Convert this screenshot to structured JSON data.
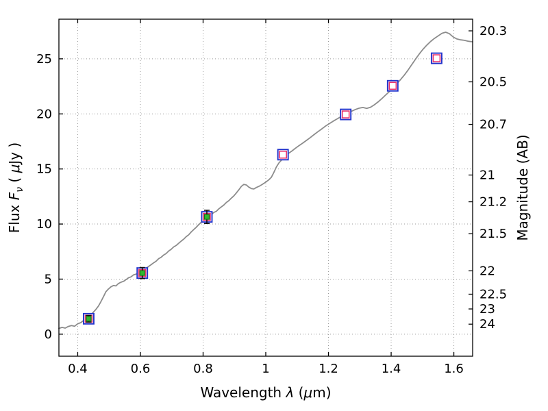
{
  "page": {
    "background": "#ffffff"
  },
  "chart_data": {
    "type": "line",
    "title": "",
    "xlabel": "Wavelength λ (μm)",
    "ylabel": "Flux Fν ( μJy )",
    "ylabel_right": "Magnitude (AB)",
    "xlabel_parts": [
      {
        "t": "Wavelength  ",
        "style": "normal"
      },
      {
        "t": "λ",
        "style": "italic"
      },
      {
        "t": " (",
        "style": "normal"
      },
      {
        "t": "μ",
        "style": "italic"
      },
      {
        "t": "m)",
        "style": "normal"
      }
    ],
    "ylabel_parts": [
      {
        "t": "Flux  ",
        "style": "normal"
      },
      {
        "t": "F",
        "style": "italic"
      },
      {
        "t": "ν",
        "style": "sub"
      },
      {
        "t": "  ( ",
        "style": "normal"
      },
      {
        "t": "μ",
        "style": "italic"
      },
      {
        "t": "Jy )",
        "style": "normal"
      }
    ],
    "xlim": [
      0.34,
      1.66
    ],
    "ylim": [
      -2.0,
      28.6
    ],
    "x_ticks": [
      {
        "v": 0.4,
        "label": "0.4"
      },
      {
        "v": 0.6,
        "label": "0.6"
      },
      {
        "v": 0.8,
        "label": "0.8"
      },
      {
        "v": 1.0,
        "label": "1"
      },
      {
        "v": 1.2,
        "label": "1.2"
      },
      {
        "v": 1.4,
        "label": "1.4"
      },
      {
        "v": 1.6,
        "label": "1.6"
      }
    ],
    "y_ticks_left": [
      {
        "v": 0,
        "label": "0"
      },
      {
        "v": 5,
        "label": "5"
      },
      {
        "v": 10,
        "label": "10"
      },
      {
        "v": 15,
        "label": "15"
      },
      {
        "v": 20,
        "label": "20"
      },
      {
        "v": 25,
        "label": "25"
      }
    ],
    "y_ticks_right": [
      {
        "v": 27.54,
        "label": "20.3"
      },
      {
        "v": 22.91,
        "label": "20.5"
      },
      {
        "v": 19.05,
        "label": "20.7"
      },
      {
        "v": 14.45,
        "label": "21"
      },
      {
        "v": 12.02,
        "label": "21.2"
      },
      {
        "v": 9.12,
        "label": "21.5"
      },
      {
        "v": 5.75,
        "label": "22"
      },
      {
        "v": 3.63,
        "label": "22.5"
      },
      {
        "v": 2.29,
        "label": "23"
      },
      {
        "v": 0.91,
        "label": "24"
      }
    ],
    "grid": {
      "show": true,
      "linestyle": "dotted",
      "color": "#9a9a9a"
    },
    "colors": {
      "spectrum": "#8c8c8c",
      "outer_square": "#2233cc",
      "model_square": "#e8336d",
      "observed_fill": "#2eb82e",
      "observed_edge": "#117711",
      "errorbar": "#111111",
      "axes": "#000000"
    },
    "series": [
      {
        "name": "model-spectrum",
        "type": "line",
        "points": [
          [
            0.34,
            0.52
          ],
          [
            0.35,
            0.62
          ],
          [
            0.36,
            0.55
          ],
          [
            0.37,
            0.7
          ],
          [
            0.38,
            0.78
          ],
          [
            0.39,
            0.72
          ],
          [
            0.4,
            0.95
          ],
          [
            0.41,
            1.05
          ],
          [
            0.42,
            1.28
          ],
          [
            0.43,
            1.45
          ],
          [
            0.44,
            1.7
          ],
          [
            0.45,
            2.0
          ],
          [
            0.458,
            2.25
          ],
          [
            0.466,
            2.55
          ],
          [
            0.474,
            2.95
          ],
          [
            0.482,
            3.4
          ],
          [
            0.49,
            3.85
          ],
          [
            0.498,
            4.1
          ],
          [
            0.506,
            4.3
          ],
          [
            0.514,
            4.42
          ],
          [
            0.522,
            4.38
          ],
          [
            0.53,
            4.6
          ],
          [
            0.538,
            4.72
          ],
          [
            0.546,
            4.8
          ],
          [
            0.554,
            4.95
          ],
          [
            0.562,
            5.12
          ],
          [
            0.57,
            5.2
          ],
          [
            0.578,
            5.38
          ],
          [
            0.586,
            5.45
          ],
          [
            0.594,
            5.6
          ],
          [
            0.602,
            5.68
          ],
          [
            0.61,
            5.88
          ],
          [
            0.618,
            5.98
          ],
          [
            0.626,
            6.15
          ],
          [
            0.634,
            6.3
          ],
          [
            0.642,
            6.48
          ],
          [
            0.65,
            6.62
          ],
          [
            0.658,
            6.85
          ],
          [
            0.666,
            6.98
          ],
          [
            0.674,
            7.18
          ],
          [
            0.682,
            7.32
          ],
          [
            0.69,
            7.55
          ],
          [
            0.698,
            7.7
          ],
          [
            0.706,
            7.92
          ],
          [
            0.714,
            8.05
          ],
          [
            0.722,
            8.25
          ],
          [
            0.73,
            8.45
          ],
          [
            0.738,
            8.62
          ],
          [
            0.746,
            8.85
          ],
          [
            0.754,
            9.02
          ],
          [
            0.762,
            9.28
          ],
          [
            0.77,
            9.5
          ],
          [
            0.778,
            9.7
          ],
          [
            0.786,
            9.95
          ],
          [
            0.794,
            10.15
          ],
          [
            0.802,
            10.32
          ],
          [
            0.81,
            10.52
          ],
          [
            0.818,
            10.65
          ],
          [
            0.826,
            10.85
          ],
          [
            0.834,
            11.05
          ],
          [
            0.842,
            11.15
          ],
          [
            0.85,
            11.38
          ],
          [
            0.858,
            11.55
          ],
          [
            0.866,
            11.72
          ],
          [
            0.874,
            11.95
          ],
          [
            0.882,
            12.12
          ],
          [
            0.89,
            12.35
          ],
          [
            0.898,
            12.55
          ],
          [
            0.906,
            12.82
          ],
          [
            0.914,
            13.1
          ],
          [
            0.922,
            13.42
          ],
          [
            0.93,
            13.6
          ],
          [
            0.938,
            13.55
          ],
          [
            0.946,
            13.35
          ],
          [
            0.954,
            13.22
          ],
          [
            0.962,
            13.18
          ],
          [
            0.97,
            13.32
          ],
          [
            0.978,
            13.42
          ],
          [
            0.986,
            13.55
          ],
          [
            0.994,
            13.7
          ],
          [
            1.002,
            13.85
          ],
          [
            1.01,
            14.02
          ],
          [
            1.018,
            14.25
          ],
          [
            1.026,
            14.7
          ],
          [
            1.034,
            15.2
          ],
          [
            1.042,
            15.55
          ],
          [
            1.05,
            15.8
          ],
          [
            1.058,
            16.05
          ],
          [
            1.066,
            16.28
          ],
          [
            1.074,
            16.45
          ],
          [
            1.082,
            16.6
          ],
          [
            1.09,
            16.78
          ],
          [
            1.098,
            16.95
          ],
          [
            1.106,
            17.12
          ],
          [
            1.118,
            17.35
          ],
          [
            1.13,
            17.6
          ],
          [
            1.142,
            17.85
          ],
          [
            1.154,
            18.12
          ],
          [
            1.166,
            18.38
          ],
          [
            1.178,
            18.62
          ],
          [
            1.19,
            18.88
          ],
          [
            1.202,
            19.1
          ],
          [
            1.214,
            19.32
          ],
          [
            1.226,
            19.52
          ],
          [
            1.238,
            19.72
          ],
          [
            1.25,
            19.9
          ],
          [
            1.262,
            20.08
          ],
          [
            1.274,
            20.25
          ],
          [
            1.286,
            20.4
          ],
          [
            1.298,
            20.52
          ],
          [
            1.31,
            20.58
          ],
          [
            1.322,
            20.5
          ],
          [
            1.334,
            20.6
          ],
          [
            1.346,
            20.82
          ],
          [
            1.358,
            21.08
          ],
          [
            1.37,
            21.38
          ],
          [
            1.382,
            21.7
          ],
          [
            1.394,
            22.02
          ],
          [
            1.406,
            22.38
          ],
          [
            1.418,
            22.75
          ],
          [
            1.43,
            23.12
          ],
          [
            1.442,
            23.52
          ],
          [
            1.454,
            23.98
          ],
          [
            1.466,
            24.48
          ],
          [
            1.478,
            24.98
          ],
          [
            1.49,
            25.45
          ],
          [
            1.502,
            25.88
          ],
          [
            1.514,
            26.25
          ],
          [
            1.526,
            26.58
          ],
          [
            1.538,
            26.85
          ],
          [
            1.55,
            27.08
          ],
          [
            1.562,
            27.32
          ],
          [
            1.574,
            27.42
          ],
          [
            1.586,
            27.28
          ],
          [
            1.598,
            26.98
          ],
          [
            1.61,
            26.8
          ],
          [
            1.622,
            26.72
          ],
          [
            1.634,
            26.68
          ],
          [
            1.646,
            26.6
          ],
          [
            1.658,
            26.55
          ],
          [
            1.66,
            26.55
          ]
        ]
      },
      {
        "name": "photometry",
        "type": "scatter",
        "points": [
          {
            "x": 0.435,
            "flux": 1.4,
            "err": 0.3,
            "observed": true
          },
          {
            "x": 0.606,
            "flux": 5.55,
            "err": 0.5,
            "observed": true
          },
          {
            "x": 0.812,
            "flux": 10.65,
            "err": 0.6,
            "observed": true
          },
          {
            "x": 1.055,
            "flux": 16.3,
            "err": 0.25,
            "observed": false
          },
          {
            "x": 1.255,
            "flux": 19.95,
            "err": 0.25,
            "observed": false
          },
          {
            "x": 1.405,
            "flux": 22.55,
            "err": 0.25,
            "observed": false
          },
          {
            "x": 1.545,
            "flux": 25.05,
            "err": 0.25,
            "observed": false
          }
        ]
      }
    ],
    "legend": {
      "show": false
    }
  }
}
